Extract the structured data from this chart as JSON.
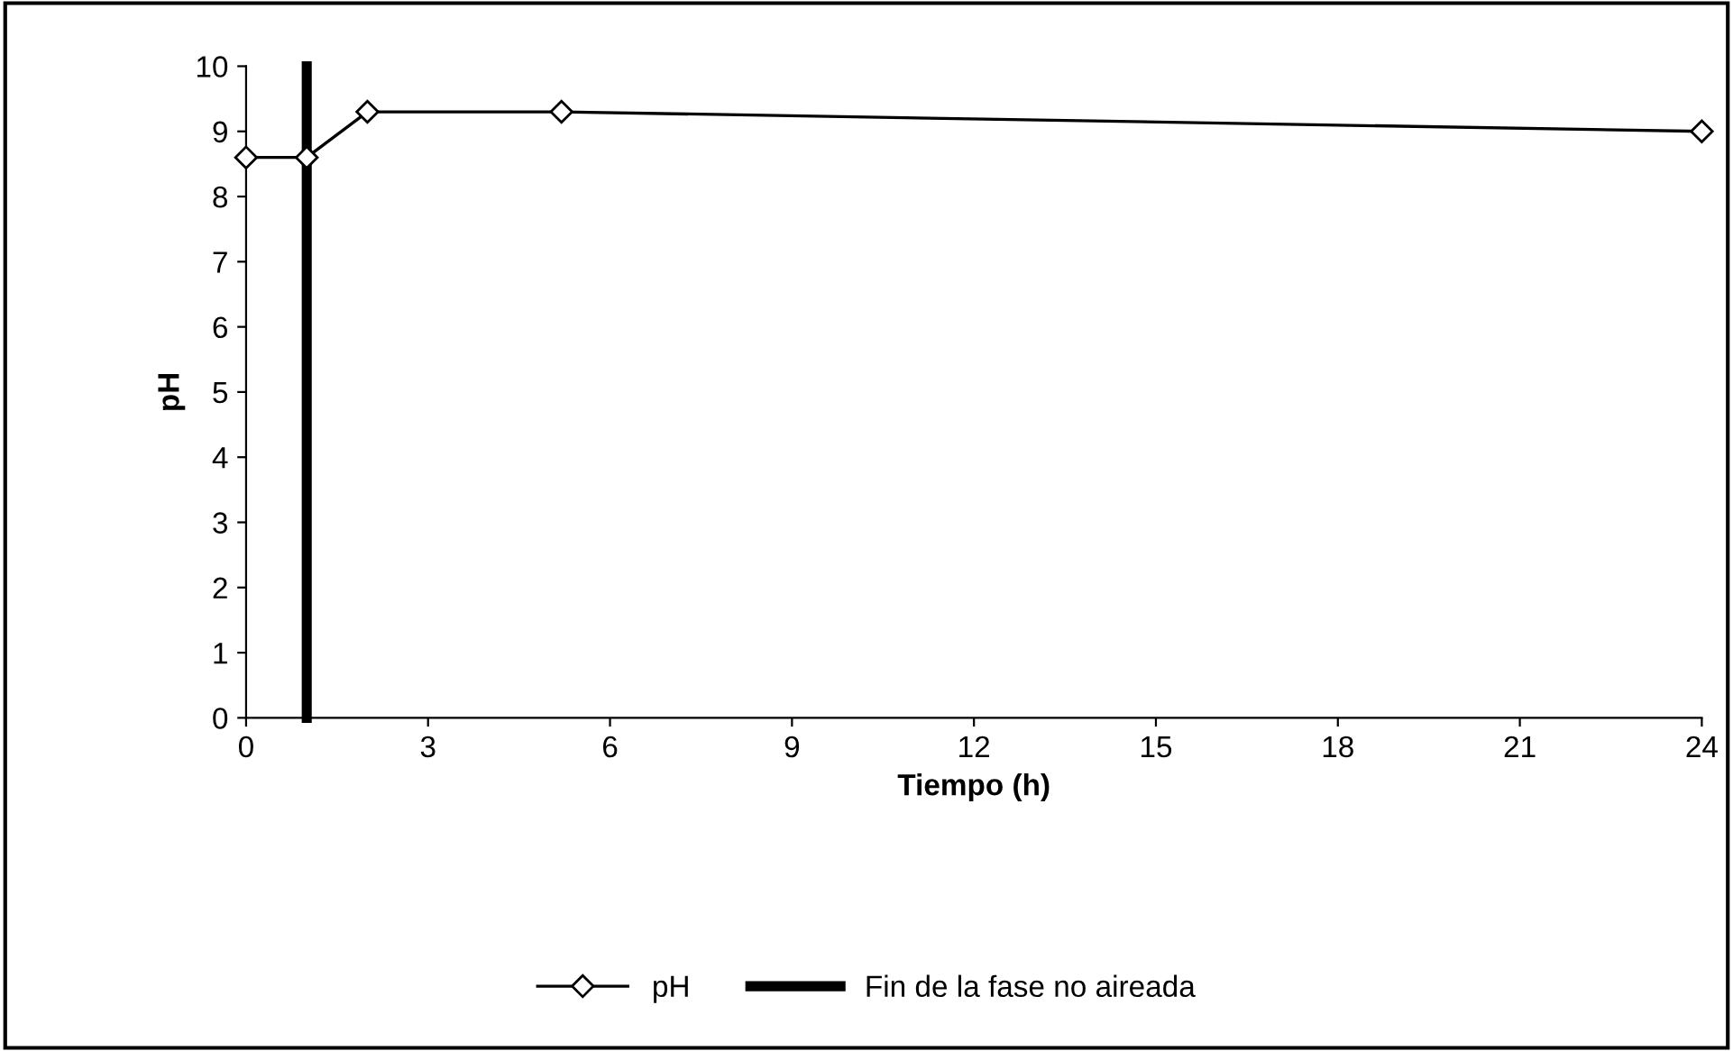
{
  "chart_data": {
    "type": "line",
    "xlabel": "Tiempo (h)",
    "ylabel": "pH",
    "xlim": [
      0,
      24
    ],
    "xticks": [
      0,
      3,
      6,
      9,
      12,
      15,
      18,
      21,
      24
    ],
    "ylim": [
      0,
      10
    ],
    "yticks": [
      0,
      1,
      2,
      3,
      4,
      5,
      6,
      7,
      8,
      9,
      10
    ],
    "grid": false,
    "legend": "bottom",
    "series": [
      {
        "name": "pH",
        "color": "#000000",
        "marker": "diamond",
        "x": [
          0,
          1,
          2,
          5.2,
          24
        ],
        "values": [
          8.6,
          8.6,
          9.3,
          9.3,
          9.0
        ]
      },
      {
        "name": "Fin de la fase no aireada",
        "color": "#000000",
        "marker": "none",
        "x": [
          1,
          1
        ],
        "values": [
          0,
          10
        ]
      }
    ]
  }
}
